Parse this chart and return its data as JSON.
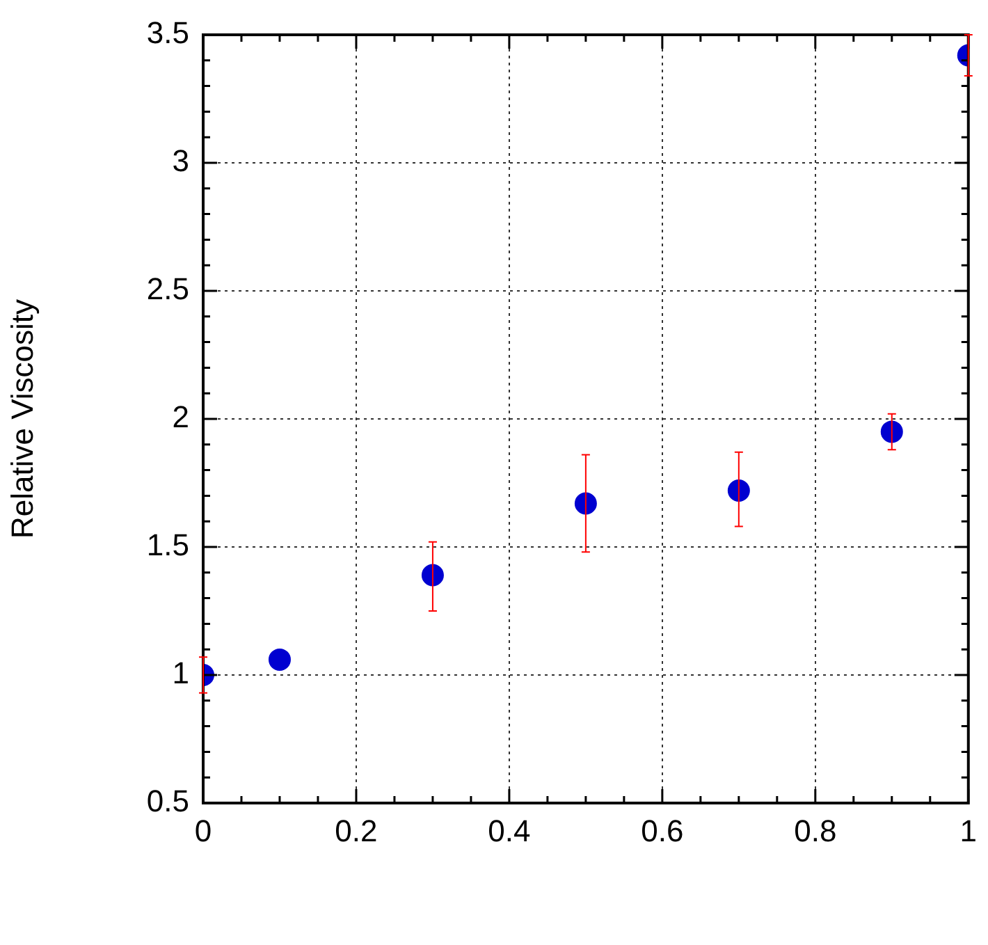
{
  "chart_data": {
    "type": "scatter",
    "ylabel": "Relative Viscosity",
    "x": [
      0,
      0.1,
      0.3,
      0.5,
      0.7,
      0.9,
      1
    ],
    "series": [
      {
        "color": "#0000d0",
        "values": [
          1.0,
          1.06,
          1.39,
          1.67,
          1.72,
          1.95,
          3.42
        ],
        "errors": [
          [
            0.93,
            1.07
          ],
          null,
          [
            1.25,
            1.52
          ],
          [
            1.48,
            1.86
          ],
          [
            1.58,
            1.87
          ],
          [
            1.88,
            2.02
          ],
          [
            3.34,
            3.5
          ]
        ]
      }
    ],
    "xlim": [
      0,
      1
    ],
    "xticks": [
      0,
      {
        "value": 0.05,
        "label": null
      },
      0.2,
      {
        "value": 0.1,
        "label": null
      },
      {
        "value": 0.15,
        "label": null
      },
      {
        "value": 0.25,
        "label": null
      },
      {
        "value": 0.3,
        "label": null
      },
      {
        "value": 0.35,
        "label": null
      },
      0.4,
      {
        "value": 0.45,
        "label": null
      },
      {
        "value": 0.5,
        "label": null
      },
      {
        "value": 0.55,
        "label": null
      },
      0.6,
      {
        "value": 0.65,
        "label": null
      },
      {
        "value": 0.7,
        "label": null
      },
      {
        "value": 0.75,
        "label": null
      },
      0.8,
      {
        "value": 0.85,
        "label": null
      },
      {
        "value": 0.9,
        "label": null
      },
      {
        "value": 0.95,
        "label": null
      },
      1
    ],
    "ylim": [
      0.5,
      3.5
    ],
    "yticks": [
      0.5,
      {
        "value": 0.6,
        "label": null
      },
      {
        "value": 0.7,
        "label": null
      },
      {
        "value": 0.8,
        "label": null
      },
      {
        "value": 0.9,
        "label": null
      },
      1,
      {
        "value": 1.1,
        "label": null
      },
      {
        "value": 1.2,
        "label": null
      },
      {
        "value": 1.3,
        "label": null
      },
      {
        "value": 1.4,
        "label": null
      },
      1.5,
      {
        "value": 1.6,
        "label": null
      },
      {
        "value": 1.7,
        "label": null
      },
      {
        "value": 1.8,
        "label": null
      },
      {
        "value": 1.9,
        "label": null
      },
      2,
      {
        "value": 2.1,
        "label": null
      },
      {
        "value": 2.2,
        "label": null
      },
      {
        "value": 2.3,
        "label": null
      },
      {
        "value": 2.4,
        "label": null
      },
      2.5,
      {
        "value": 2.6,
        "label": null
      },
      {
        "value": 2.7,
        "label": null
      },
      {
        "value": 2.8,
        "label": null
      },
      {
        "value": 2.9,
        "label": null
      },
      3,
      {
        "value": 3.1,
        "label": null
      },
      {
        "value": 3.2,
        "label": null
      },
      {
        "value": 3.3,
        "label": null
      },
      {
        "value": 3.4,
        "label": null
      },
      3.5
    ],
    "grid": true,
    "marker": "circle",
    "legend": false
  }
}
